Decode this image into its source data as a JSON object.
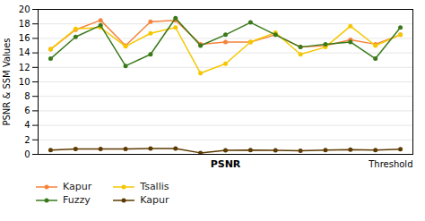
{
  "chart_data": {
    "type": "line",
    "xlabel": "PSNR",
    "ylabel": "PSNR & SSM Values",
    "annotations": [
      "Threshold"
    ],
    "x": [
      1,
      2,
      3,
      4,
      5,
      6,
      7,
      8,
      9,
      10,
      11,
      12,
      13,
      14,
      15
    ],
    "series": [
      {
        "name": "Kapur",
        "color": "#F4843C",
        "values": [
          14.5,
          17.2,
          18.5,
          15.0,
          18.3,
          18.5,
          15.2,
          15.5,
          15.5,
          16.5,
          14.8,
          15.0,
          15.8,
          15.2,
          16.5
        ]
      },
      {
        "name": "Tsallis",
        "color": "#F5C700",
        "values": [
          14.5,
          17.3,
          17.5,
          14.9,
          16.7,
          17.5,
          11.2,
          12.5,
          15.5,
          16.8,
          13.8,
          14.8,
          17.7,
          15.0,
          16.5
        ]
      },
      {
        "name": "Fuzzy",
        "color": "#3A7A1A",
        "values": [
          13.2,
          16.2,
          17.8,
          12.2,
          13.8,
          18.8,
          15.0,
          16.5,
          18.2,
          16.5,
          14.8,
          15.2,
          15.5,
          13.2,
          17.5
        ]
      },
      {
        "name": "Kapur",
        "color": "#5C3A00",
        "values": [
          0.6,
          0.75,
          0.75,
          0.75,
          0.8,
          0.8,
          0.2,
          0.55,
          0.6,
          0.55,
          0.5,
          0.6,
          0.65,
          0.6,
          0.7
        ]
      }
    ],
    "xlim": [
      0.5,
      15.5
    ],
    "xticks": [],
    "ylim": [
      0,
      20
    ],
    "yticks": [
      0,
      2,
      4,
      6,
      8,
      10,
      12,
      14,
      16,
      18,
      20
    ],
    "tick_labels": "y",
    "grid": true,
    "legend": "bottom",
    "marker": "circle"
  }
}
